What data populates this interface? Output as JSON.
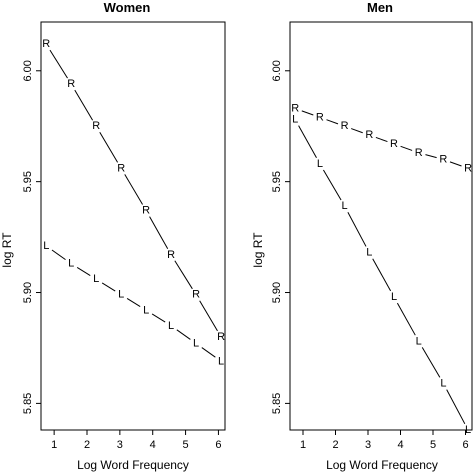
{
  "chart_data": [
    {
      "type": "line",
      "title": "Women",
      "xlabel": "Log Word Frequency",
      "ylabel": "log RT",
      "xlim": [
        0.6,
        6.2
      ],
      "ylim": [
        5.838,
        6.022
      ],
      "xticks": [
        1,
        2,
        3,
        4,
        5,
        6
      ],
      "yticks": [
        5.85,
        5.9,
        5.95,
        6.0
      ],
      "ytick_labels": [
        "5.85",
        "5.90",
        "5.95",
        "6.00"
      ],
      "line_style": "dashed",
      "series": [
        {
          "marker": "R",
          "x": [
            0.76,
            1.52,
            2.28,
            3.04,
            3.8,
            4.56,
            5.32,
            6.08
          ],
          "y": [
            6.012,
            5.994,
            5.975,
            5.956,
            5.937,
            5.917,
            5.899,
            5.88
          ]
        },
        {
          "marker": "L",
          "x": [
            0.76,
            1.52,
            2.28,
            3.04,
            3.8,
            4.56,
            5.32,
            6.08
          ],
          "y": [
            5.921,
            5.913,
            5.906,
            5.899,
            5.892,
            5.885,
            5.877,
            5.869
          ]
        }
      ]
    },
    {
      "type": "line",
      "title": "Men",
      "xlabel": "Log Word Frequency",
      "ylabel": "log RT",
      "xlim": [
        0.6,
        6.2
      ],
      "ylim": [
        5.838,
        6.022
      ],
      "xticks": [
        1,
        2,
        3,
        4,
        5,
        6
      ],
      "yticks": [
        5.85,
        5.9,
        5.95,
        6.0
      ],
      "ytick_labels": [
        "5.85",
        "5.90",
        "5.95",
        "6.00"
      ],
      "line_style": "dashed",
      "series": [
        {
          "marker": "R",
          "x": [
            0.76,
            1.52,
            2.28,
            3.04,
            3.8,
            4.56,
            5.32,
            6.08
          ],
          "y": [
            5.983,
            5.979,
            5.975,
            5.971,
            5.967,
            5.963,
            5.96,
            5.956
          ]
        },
        {
          "marker": "L",
          "x": [
            0.76,
            1.52,
            2.28,
            3.04,
            3.8,
            4.56,
            5.32,
            6.08
          ],
          "y": [
            5.978,
            5.958,
            5.939,
            5.918,
            5.898,
            5.878,
            5.859,
            5.838
          ]
        }
      ]
    }
  ]
}
